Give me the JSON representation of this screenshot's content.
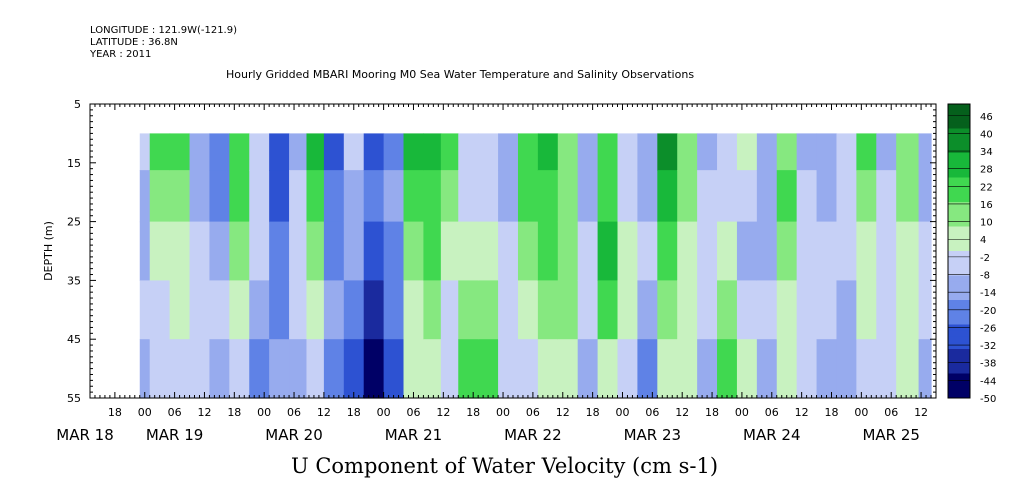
{
  "header": {
    "longitude": "LONGITUDE : 121.9W(-121.9)",
    "latitude": "LATITUDE : 36.8N",
    "year": "YEAR : 2011"
  },
  "chart_data": {
    "type": "heatmap",
    "title": "Hourly Gridded MBARI Mooring M0 Sea Water Temperature and Salinity Observations",
    "xlabel": "U Component of Water Velocity (cm s-1)",
    "ylabel": "DEPTH (m)",
    "y_ticks": [
      5,
      15,
      25,
      35,
      45,
      55
    ],
    "ylim": [
      55,
      5
    ],
    "y_inverted": true,
    "x_hour_ticks": [
      "18",
      "00",
      "06",
      "12",
      "18",
      "00",
      "06",
      "12",
      "18",
      "00",
      "06",
      "12",
      "18",
      "00",
      "06",
      "12",
      "18",
      "00",
      "06",
      "12",
      "18",
      "00",
      "06",
      "12",
      "18",
      "00",
      "06",
      "12",
      "18",
      "00",
      "06",
      "12"
    ],
    "x_date_labels": [
      "MAR 18",
      "MAR 19",
      "MAR 20",
      "MAR 21",
      "MAR 22",
      "MAR 23",
      "MAR 24",
      "MAR 25"
    ],
    "xlim": [
      "2011-03-18T13:00",
      "2011-03-25T15:00"
    ],
    "data_time_range": [
      "2011-03-18T23:00",
      "2011-03-25T14:00"
    ],
    "data_depth_range": [
      10,
      55
    ],
    "colorbar": {
      "ticks": [
        46,
        40,
        34,
        28,
        22,
        16,
        10,
        4,
        -2,
        -8,
        -14,
        -20,
        -26,
        -32,
        -38,
        -44,
        -50
      ],
      "range": [
        -50,
        50
      ],
      "colors": [
        "#000066",
        "#1a2a9e",
        "#2d52d2",
        "#5f82e6",
        "#97abee",
        "#c6d0f6",
        "#c8f2c0",
        "#86e880",
        "#40d850",
        "#18b83a",
        "#0c8e2a",
        "#05601c"
      ]
    },
    "bands_depth": [
      12.5,
      20,
      30,
      40,
      50
    ],
    "velocity_columns": [
      {
        "time": "2011-03-18T23:00",
        "u": [
          -6,
          -14,
          -12,
          -8,
          -10
        ]
      },
      {
        "time": "2011-03-19T03:00",
        "u": [
          18,
          10,
          2,
          -4,
          -6
        ]
      },
      {
        "time": "2011-03-19T07:00",
        "u": [
          22,
          16,
          6,
          0,
          -4
        ]
      },
      {
        "time": "2011-03-19T11:00",
        "u": [
          -14,
          -10,
          -6,
          -4,
          -8
        ]
      },
      {
        "time": "2011-03-19T15:00",
        "u": [
          -20,
          -18,
          -12,
          -8,
          -10
        ]
      },
      {
        "time": "2011-03-19T19:00",
        "u": [
          22,
          18,
          10,
          4,
          -2
        ]
      },
      {
        "time": "2011-03-19T23:00",
        "u": [
          -4,
          -8,
          -6,
          -10,
          -24
        ]
      },
      {
        "time": "2011-03-20T03:00",
        "u": [
          -30,
          -26,
          -22,
          -18,
          -14
        ]
      },
      {
        "time": "2011-03-20T07:00",
        "u": [
          -10,
          -8,
          -4,
          -6,
          -10
        ]
      },
      {
        "time": "2011-03-20T10:00",
        "u": [
          30,
          24,
          14,
          6,
          -4
        ]
      },
      {
        "time": "2011-03-20T14:00",
        "u": [
          -30,
          -24,
          -18,
          -14,
          -18
        ]
      },
      {
        "time": "2011-03-20T18:00",
        "u": [
          -8,
          -12,
          -16,
          -20,
          -26
        ]
      },
      {
        "time": "2011-03-20T22:00",
        "u": [
          -26,
          -22,
          -30,
          -34,
          -46
        ]
      },
      {
        "time": "2011-03-21T02:00",
        "u": [
          -22,
          -14,
          -18,
          -22,
          -28
        ]
      },
      {
        "time": "2011-03-21T06:00",
        "u": [
          28,
          22,
          14,
          6,
          2
        ]
      },
      {
        "time": "2011-03-21T10:00",
        "u": [
          26,
          24,
          18,
          10,
          4
        ]
      },
      {
        "time": "2011-03-21T13:00",
        "u": [
          18,
          12,
          6,
          -4,
          -8
        ]
      },
      {
        "time": "2011-03-21T17:00",
        "u": [
          -8,
          -4,
          6,
          14,
          22
        ]
      },
      {
        "time": "2011-03-21T21:00",
        "u": [
          -6,
          -8,
          4,
          12,
          20
        ]
      },
      {
        "time": "2011-03-22T01:00",
        "u": [
          -16,
          -10,
          -4,
          -2,
          -6
        ]
      },
      {
        "time": "2011-03-22T05:00",
        "u": [
          24,
          20,
          14,
          6,
          -2
        ]
      },
      {
        "time": "2011-03-22T09:00",
        "u": [
          28,
          24,
          20,
          12,
          4
        ]
      },
      {
        "time": "2011-03-22T13:00",
        "u": [
          10,
          14,
          16,
          10,
          4
        ]
      },
      {
        "time": "2011-03-22T17:00",
        "u": [
          -14,
          -10,
          -4,
          -6,
          -12
        ]
      },
      {
        "time": "2011-03-22T21:00",
        "u": [
          20,
          24,
          26,
          18,
          8
        ]
      },
      {
        "time": "2011-03-23T01:00",
        "u": [
          -8,
          -4,
          2,
          8,
          -6
        ]
      },
      {
        "time": "2011-03-23T05:00",
        "u": [
          -14,
          -10,
          -6,
          -10,
          -20
        ]
      },
      {
        "time": "2011-03-23T09:00",
        "u": [
          34,
          30,
          24,
          16,
          6
        ]
      },
      {
        "time": "2011-03-23T13:00",
        "u": [
          12,
          10,
          6,
          4,
          2
        ]
      },
      {
        "time": "2011-03-23T17:00",
        "u": [
          -10,
          -6,
          -4,
          -8,
          -16
        ]
      },
      {
        "time": "2011-03-23T21:00",
        "u": [
          -8,
          -4,
          8,
          16,
          22
        ]
      },
      {
        "time": "2011-03-24T01:00",
        "u": [
          4,
          -6,
          -10,
          -4,
          2
        ]
      },
      {
        "time": "2011-03-24T05:00",
        "u": [
          -14,
          -12,
          -10,
          -8,
          -12
        ]
      },
      {
        "time": "2011-03-24T09:00",
        "u": [
          16,
          18,
          14,
          8,
          2
        ]
      },
      {
        "time": "2011-03-24T13:00",
        "u": [
          -10,
          -8,
          -6,
          -4,
          -8
        ]
      },
      {
        "time": "2011-03-24T17:00",
        "u": [
          -12,
          -10,
          -8,
          -6,
          -10
        ]
      },
      {
        "time": "2011-03-24T21:00",
        "u": [
          -4,
          -6,
          -8,
          -10,
          -12
        ]
      },
      {
        "time": "2011-03-25T01:00",
        "u": [
          18,
          12,
          4,
          0,
          -4
        ]
      },
      {
        "time": "2011-03-25T05:00",
        "u": [
          -10,
          -6,
          -4,
          -6,
          -8
        ]
      },
      {
        "time": "2011-03-25T09:00",
        "u": [
          16,
          12,
          8,
          4,
          2
        ]
      },
      {
        "time": "2011-03-25T14:00",
        "u": [
          -10,
          -10,
          -8,
          -8,
          -10
        ]
      }
    ]
  }
}
